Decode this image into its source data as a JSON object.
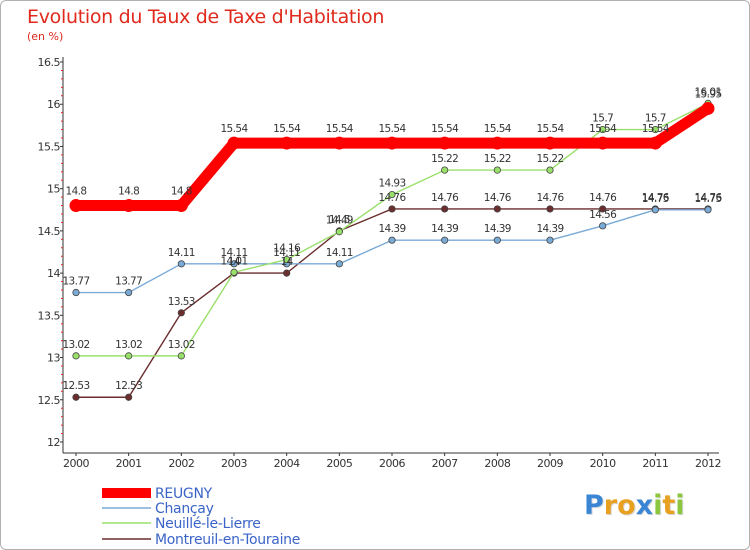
{
  "chart_data": {
    "type": "line",
    "title": "Evolution du Taux de Taxe d'Habitation",
    "subtitle": "(en %)",
    "xlabel": "",
    "ylabel": "",
    "x": [
      "2000",
      "2001",
      "2002",
      "2003",
      "2004",
      "2005",
      "2006",
      "2007",
      "2008",
      "2009",
      "2010",
      "2011",
      "2012"
    ],
    "ylim": [
      12,
      16.5
    ],
    "yticks": [
      "12",
      "12.5",
      "13",
      "13.5",
      "14",
      "14.5",
      "15",
      "15.5",
      "16",
      "16.5"
    ],
    "grid": false,
    "legend_position": "bottom-left",
    "series": [
      {
        "name": "REUGNY",
        "color": "#ff0000",
        "values": [
          14.8,
          14.8,
          14.8,
          15.54,
          15.54,
          15.54,
          15.54,
          15.54,
          15.54,
          15.54,
          15.54,
          15.54,
          15.95
        ],
        "labels": [
          "14.8",
          "14.8",
          "14.8",
          "15.54",
          "15.54",
          "15.54",
          "15.54",
          "15.54",
          "15.54",
          "15.54",
          "15.54",
          "15.54",
          "15.95"
        ]
      },
      {
        "name": "Chançay",
        "color": "#7aaad6",
        "values": [
          13.77,
          13.77,
          14.11,
          14.11,
          14.11,
          14.11,
          14.39,
          14.39,
          14.39,
          14.39,
          14.56,
          14.75,
          14.75
        ],
        "labels": [
          "13.77",
          "13.77",
          "14.11",
          "14.11",
          "14.11",
          "14.11",
          "14.39",
          "14.39",
          "14.39",
          "14.39",
          "14.56",
          "14.75",
          "14.75"
        ]
      },
      {
        "name": "Neuillé-le-Lierre",
        "color": "#99e06a",
        "values": [
          13.02,
          13.02,
          13.02,
          14.01,
          14.16,
          14.49,
          14.93,
          15.22,
          15.22,
          15.22,
          15.7,
          15.7,
          16.01
        ],
        "labels": [
          "13.02",
          "13.02",
          "13.02",
          "14.01",
          "14.16",
          "14.49",
          "14.93",
          "15.22",
          "15.22",
          "15.22",
          "15.7",
          "15.7",
          "16.01"
        ]
      },
      {
        "name": "Montreuil-en-Touraine",
        "color": "#6b2d2d",
        "values": [
          12.53,
          12.53,
          13.53,
          14,
          14,
          14.5,
          14.76,
          14.76,
          14.76,
          14.76,
          14.76,
          14.76,
          14.76
        ],
        "labels": [
          "12.53",
          "12.53",
          "13.53",
          "14",
          "14",
          "14.5",
          "14.76",
          "14.76",
          "14.76",
          "14.76",
          "14.76",
          "14.76",
          "14.76"
        ]
      }
    ]
  },
  "logo": {
    "letters": [
      "P",
      "r",
      "o",
      "x",
      "i",
      "t",
      "i"
    ],
    "colors": [
      "#3a86d4",
      "#e8a020",
      "#e8a020",
      "#3a86d4",
      "#8cc63f",
      "#e8a020",
      "#8cc63f"
    ]
  }
}
